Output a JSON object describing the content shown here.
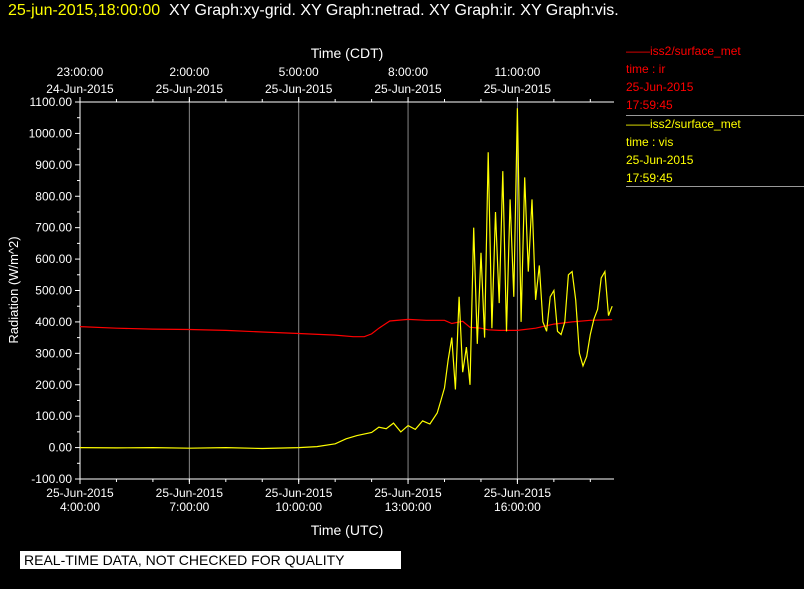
{
  "title": {
    "date": "25-jun-2015,18:00:00",
    "graphs": "XY Graph:xy-grid.  XY Graph:netrad.  XY Graph:ir.  XY Graph:vis."
  },
  "legend": [
    {
      "name": "iss2/surface_met",
      "line": "time : ir",
      "date": "25-Jun-2015",
      "time": "17:59:45",
      "color": "#ff0000"
    },
    {
      "name": "iss2/surface_met",
      "line": "time : vis",
      "date": "25-Jun-2015",
      "time": "17:59:45",
      "color": "#ffff00"
    }
  ],
  "disclaimer": "REAL-TIME DATA, NOT CHECKED FOR QUALITY",
  "chart_data": {
    "type": "line",
    "xlabel_top": "Time (CDT)",
    "xlabel_bottom": "Time (UTC)",
    "ylabel": "Radiation (W/m^2)",
    "ylim": [
      -100,
      1100
    ],
    "xlim_hours_utc": [
      4.0,
      18.65
    ],
    "yticks": [
      "-100.00",
      "0.00",
      "100.00",
      "200.00",
      "300.00",
      "400.00",
      "500.00",
      "600.00",
      "700.00",
      "800.00",
      "900.00",
      "1000.00",
      "1100.00"
    ],
    "top_ticks": [
      {
        "t": "23:00:00",
        "d": "24-Jun-2015"
      },
      {
        "t": "2:00:00",
        "d": "25-Jun-2015"
      },
      {
        "t": "5:00:00",
        "d": "25-Jun-2015"
      },
      {
        "t": "8:00:00",
        "d": "25-Jun-2015"
      },
      {
        "t": "11:00:00",
        "d": "25-Jun-2015"
      }
    ],
    "bottom_ticks": [
      {
        "d": "25-Jun-2015",
        "t": "4:00:00"
      },
      {
        "d": "25-Jun-2015",
        "t": "7:00:00"
      },
      {
        "d": "25-Jun-2015",
        "t": "10:00:00"
      },
      {
        "d": "25-Jun-2015",
        "t": "13:00:00"
      },
      {
        "d": "25-Jun-2015",
        "t": "16:00:00"
      }
    ],
    "grid": true,
    "series": [
      {
        "name": "iss2/surface_met time : ir",
        "color": "#ff0000",
        "x": [
          4.0,
          5.0,
          6.0,
          7.0,
          8.0,
          9.0,
          10.0,
          11.0,
          11.5,
          11.8,
          12.0,
          12.2,
          12.5,
          13.0,
          13.5,
          14.0,
          14.2,
          14.5,
          14.7,
          15.0,
          15.2,
          15.5,
          16.0,
          16.5,
          17.0,
          17.5,
          18.0,
          18.6
        ],
        "y": [
          385,
          380,
          377,
          376,
          373,
          368,
          363,
          358,
          353,
          353,
          362,
          380,
          403,
          408,
          405,
          405,
          395,
          402,
          383,
          380,
          375,
          373,
          373,
          380,
          393,
          400,
          405,
          407
        ]
      },
      {
        "name": "iss2/surface_met time : vis",
        "color": "#ffff00",
        "x": [
          4.0,
          5.0,
          6.0,
          7.0,
          8.0,
          9.0,
          10.0,
          10.5,
          11.0,
          11.3,
          11.6,
          12.0,
          12.2,
          12.4,
          12.6,
          12.8,
          13.0,
          13.2,
          13.4,
          13.6,
          13.8,
          13.9,
          14.0,
          14.1,
          14.2,
          14.3,
          14.4,
          14.5,
          14.6,
          14.7,
          14.8,
          14.9,
          15.0,
          15.1,
          15.2,
          15.3,
          15.4,
          15.5,
          15.6,
          15.7,
          15.8,
          15.9,
          16.0,
          16.1,
          16.2,
          16.3,
          16.4,
          16.5,
          16.6,
          16.7,
          16.8,
          16.9,
          17.0,
          17.1,
          17.2,
          17.3,
          17.4,
          17.5,
          17.6,
          17.7,
          17.8,
          17.9,
          18.0,
          18.1,
          18.2,
          18.3,
          18.4,
          18.5,
          18.6
        ],
        "y": [
          0,
          -1,
          0,
          -2,
          0,
          -3,
          0,
          3,
          12,
          28,
          38,
          48,
          65,
          60,
          78,
          50,
          70,
          58,
          85,
          75,
          110,
          150,
          190,
          280,
          350,
          185,
          480,
          240,
          320,
          200,
          700,
          330,
          620,
          350,
          940,
          380,
          750,
          460,
          880,
          370,
          790,
          480,
          1080,
          400,
          860,
          560,
          790,
          470,
          580,
          400,
          370,
          480,
          500,
          370,
          360,
          400,
          550,
          560,
          470,
          300,
          260,
          290,
          360,
          410,
          440,
          540,
          560,
          420,
          450
        ]
      }
    ]
  }
}
